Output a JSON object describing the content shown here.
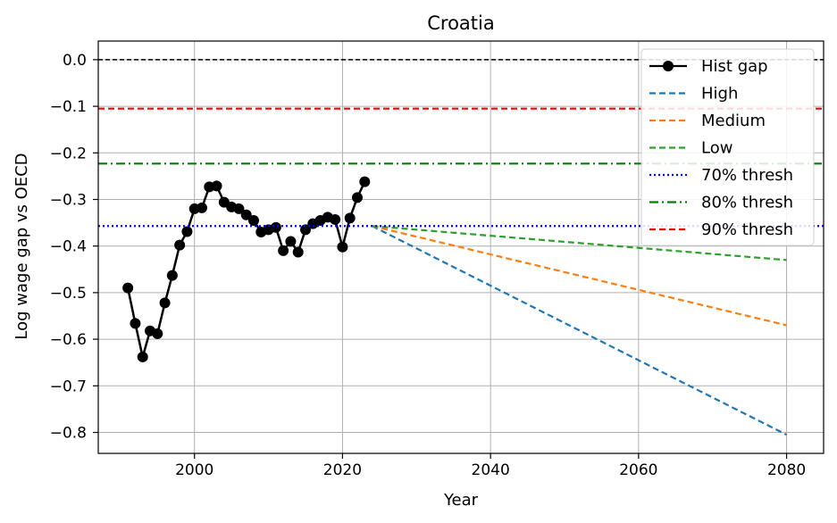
{
  "chart_data": {
    "type": "line",
    "title": "Croatia",
    "xlabel": "Year",
    "ylabel": "Log wage gap vs OECD",
    "xlim": [
      1987,
      2085
    ],
    "ylim": [
      -0.845,
      0.04
    ],
    "x_ticks": [
      2000,
      2020,
      2040,
      2060,
      2080
    ],
    "y_ticks": [
      0.0,
      -0.1,
      -0.2,
      -0.3,
      -0.4,
      -0.5,
      -0.6,
      -0.7,
      -0.8
    ],
    "x_tick_labels": [
      "2000",
      "2020",
      "2040",
      "2060",
      "2080"
    ],
    "y_tick_labels": [
      "0.0",
      "−0.1",
      "−0.2",
      "−0.3",
      "−0.4",
      "−0.5",
      "−0.6",
      "−0.7",
      "−0.8"
    ],
    "grid": true,
    "legend_position": "top-right",
    "zero_line": {
      "y": 0.0,
      "color": "#000000",
      "style": "dashed"
    },
    "series": [
      {
        "name": "Hist gap",
        "style": "solid-marker",
        "color": "#000000",
        "x": [
          1991,
          1992,
          1993,
          1994,
          1995,
          1996,
          1997,
          1998,
          1999,
          2000,
          2001,
          2002,
          2003,
          2004,
          2005,
          2006,
          2007,
          2008,
          2009,
          2010,
          2011,
          2012,
          2013,
          2014,
          2015,
          2016,
          2017,
          2018,
          2019,
          2020,
          2021,
          2022,
          2023
        ],
        "y": [
          -0.49,
          -0.566,
          -0.638,
          -0.582,
          -0.588,
          -0.522,
          -0.463,
          -0.398,
          -0.369,
          -0.32,
          -0.318,
          -0.273,
          -0.271,
          -0.306,
          -0.316,
          -0.32,
          -0.333,
          -0.345,
          -0.37,
          -0.365,
          -0.36,
          -0.41,
          -0.39,
          -0.413,
          -0.365,
          -0.352,
          -0.345,
          -0.338,
          -0.343,
          -0.402,
          -0.34,
          -0.296,
          -0.262
        ]
      },
      {
        "name": "High",
        "style": "dashed",
        "color": "#1f77b4",
        "x": [
          2024,
          2080
        ],
        "y": [
          -0.357,
          -0.805
        ]
      },
      {
        "name": "Medium",
        "style": "dashed",
        "color": "#ff7f0e",
        "x": [
          2024,
          2080
        ],
        "y": [
          -0.357,
          -0.57
        ]
      },
      {
        "name": "Low",
        "style": "dashed",
        "color": "#2ca02c",
        "x": [
          2024,
          2080
        ],
        "y": [
          -0.357,
          -0.43
        ]
      },
      {
        "name": "70% thresh",
        "style": "dotted",
        "color": "#0000ff",
        "y_const": -0.357
      },
      {
        "name": "80% thresh",
        "style": "dashdot",
        "color": "#008000",
        "y_const": -0.223
      },
      {
        "name": "90% thresh",
        "style": "dashed",
        "color": "#ff0000",
        "y_const": -0.105
      }
    ]
  }
}
